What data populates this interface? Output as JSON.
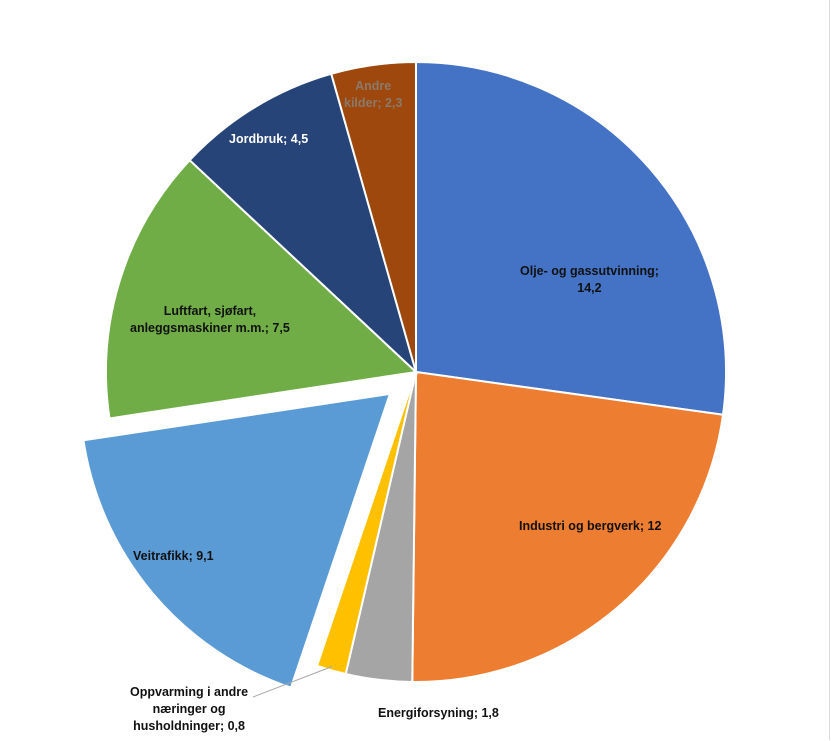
{
  "chart_data": {
    "type": "pie",
    "title": "",
    "start_angle_deg": 0,
    "direction": "clockwise",
    "slices": [
      {
        "label": "Olje- og gassutvinning; 14,2",
        "label_lines": [
          "Olje- og gassutvinning;",
          "14,2"
        ],
        "value": 14.2,
        "color": "#4472C4",
        "label_color": "#111111",
        "exploded": false
      },
      {
        "label": "Industri og bergverk; 12",
        "label_lines": [
          "Industri og bergverk; 12"
        ],
        "value": 12,
        "color": "#ED7D31",
        "label_color": "#111111",
        "exploded": false
      },
      {
        "label": "Energiforsyning; 1,8",
        "label_lines": [
          "Energiforsyning; 1,8"
        ],
        "value": 1.8,
        "color": "#A5A5A5",
        "label_color": "#111111",
        "exploded": false
      },
      {
        "label": "Oppvarming i andre næringer og husholdninger; 0,8",
        "label_lines": [
          "Oppvarming i andre",
          "næringer og",
          "husholdninger; 0,8"
        ],
        "value": 0.8,
        "color": "#FFC000",
        "label_color": "#111111",
        "exploded": false
      },
      {
        "label": "Veitrafikk; 9,1",
        "label_lines": [
          "Veitrafikk; 9,1"
        ],
        "value": 9.1,
        "color": "#5B9BD5",
        "label_color": "#111111",
        "exploded": true
      },
      {
        "label": "Luftfart, sjøfart, anleggsmaskiner m.m.; 7,5",
        "label_lines": [
          "Luftfart, sjøfart,",
          "anleggsmaskiner m.m.; 7,5"
        ],
        "value": 7.5,
        "color": "#70AD47",
        "label_color": "#111111",
        "exploded": false
      },
      {
        "label": "Jordbruk; 4,5",
        "label_lines": [
          "Jordbruk; 4,5"
        ],
        "value": 4.5,
        "color": "#264478",
        "label_color": "#ffffff",
        "exploded": false
      },
      {
        "label": "Andre kilder; 2,3",
        "label_lines": [
          "Andre",
          "kilder; 2,3"
        ],
        "value": 2.3,
        "color": "#9E480E",
        "label_color": "#8a7a6a",
        "exploded": false
      }
    ]
  }
}
